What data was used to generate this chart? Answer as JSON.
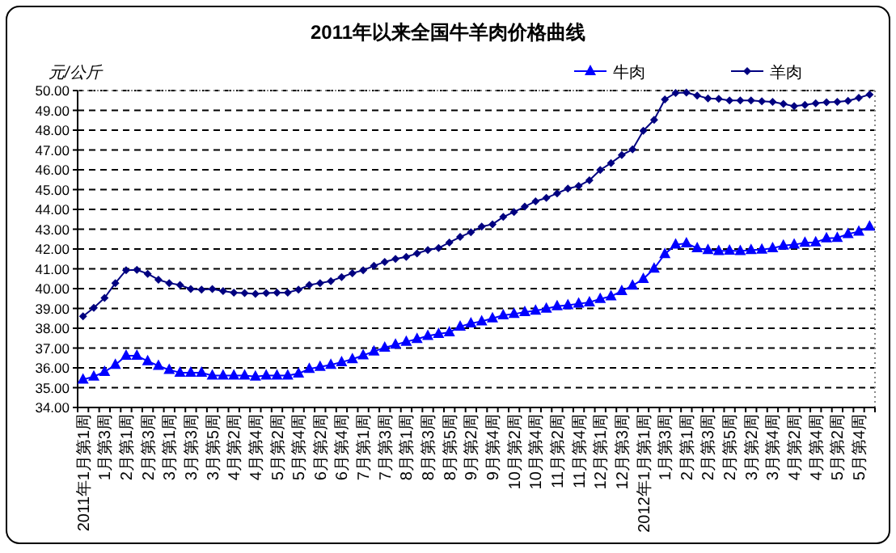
{
  "chart_data": {
    "type": "line",
    "title": "2011年以来全国牛羊肉价格曲线",
    "ylabel": "元/公斤",
    "categories": [
      "2011年1月第1周",
      null,
      "1月第3周",
      null,
      "2月第1周",
      null,
      "2月第3周",
      null,
      "3月第1周",
      null,
      "3月第3周",
      null,
      "3月第5周",
      null,
      "4月第2周",
      null,
      "4月第4周",
      null,
      "5月第2周",
      null,
      "5月第4周",
      null,
      "6月第2周",
      null,
      "6月第4周",
      null,
      "7月第1周",
      null,
      "7月第3周",
      null,
      "8月第1周",
      null,
      "8月第3周",
      null,
      "8月第5周",
      null,
      "9月第2周",
      null,
      "9月第4周",
      null,
      "10月第2周",
      null,
      "10月第4周",
      null,
      "11月第2周",
      null,
      "11月第4周",
      null,
      "12月第1周",
      null,
      "12月第3周",
      null,
      "2012年1月第1周",
      null,
      "1月第3周",
      null,
      "2月第1周",
      null,
      "2月第3周",
      null,
      "2月第5周",
      null,
      "3月第2周",
      null,
      "3月第4周",
      null,
      "4月第2周",
      null,
      "4月第4周",
      null,
      "5月第2周",
      null,
      "5月第4周",
      null
    ],
    "series": [
      {
        "name": "牛肉",
        "color": "#0000ff",
        "marker": "triangle",
        "values": [
          35.41,
          35.56,
          35.8,
          36.15,
          36.61,
          36.61,
          36.34,
          36.1,
          35.9,
          35.76,
          35.76,
          35.76,
          35.61,
          35.61,
          35.61,
          35.61,
          35.56,
          35.61,
          35.61,
          35.61,
          35.71,
          35.95,
          36.05,
          36.15,
          36.29,
          36.44,
          36.63,
          36.83,
          37.02,
          37.17,
          37.32,
          37.46,
          37.61,
          37.71,
          37.8,
          38.08,
          38.25,
          38.35,
          38.5,
          38.65,
          38.72,
          38.82,
          38.89,
          38.99,
          39.11,
          39.16,
          39.24,
          39.31,
          39.48,
          39.61,
          39.88,
          40.15,
          40.49,
          41.01,
          41.75,
          42.22,
          42.29,
          42.04,
          41.95,
          41.9,
          41.92,
          41.9,
          41.95,
          41.97,
          42.04,
          42.17,
          42.22,
          42.32,
          42.34,
          42.54,
          42.56,
          42.76,
          42.88,
          43.13
        ]
      },
      {
        "name": "羊肉",
        "color": "#000080",
        "marker": "diamond",
        "values": [
          38.6,
          39.03,
          39.53,
          40.28,
          40.93,
          40.95,
          40.75,
          40.45,
          40.28,
          40.18,
          39.98,
          39.95,
          39.98,
          39.88,
          39.8,
          39.78,
          39.73,
          39.78,
          39.8,
          39.8,
          39.95,
          40.18,
          40.28,
          40.38,
          40.58,
          40.78,
          40.93,
          41.15,
          41.35,
          41.5,
          41.6,
          41.78,
          41.95,
          42.05,
          42.33,
          42.61,
          42.85,
          43.13,
          43.25,
          43.62,
          43.87,
          44.14,
          44.41,
          44.58,
          44.81,
          45.05,
          45.18,
          45.47,
          45.99,
          46.34,
          46.74,
          47.03,
          47.97,
          48.52,
          49.55,
          49.88,
          49.9,
          49.75,
          49.6,
          49.58,
          49.5,
          49.5,
          49.5,
          49.46,
          49.43,
          49.33,
          49.21,
          49.28,
          49.36,
          49.41,
          49.43,
          49.48,
          49.63,
          49.8
        ]
      }
    ],
    "ylim": [
      34,
      50
    ],
    "yticks": [
      {
        "value": 34,
        "label": "34.00"
      },
      {
        "value": 35,
        "label": "35.00"
      },
      {
        "value": 36,
        "label": "36.00"
      },
      {
        "value": 37,
        "label": "37.00"
      },
      {
        "value": 38,
        "label": "38.00"
      },
      {
        "value": 39,
        "label": "39.00"
      },
      {
        "value": 40,
        "label": "40.00"
      },
      {
        "value": 41,
        "label": "41.00"
      },
      {
        "value": 42,
        "label": "42.00"
      },
      {
        "value": 43,
        "label": "43.00"
      },
      {
        "value": 44,
        "label": "44.00"
      },
      {
        "value": 45,
        "label": "45.00"
      },
      {
        "value": 46,
        "label": "46.00"
      },
      {
        "value": 47,
        "label": "47.00"
      },
      {
        "value": 48,
        "label": "48.00"
      },
      {
        "value": 49,
        "label": "49.00"
      },
      {
        "value": 50,
        "label": "50.00"
      }
    ],
    "grid": "y",
    "legend": "top right"
  }
}
